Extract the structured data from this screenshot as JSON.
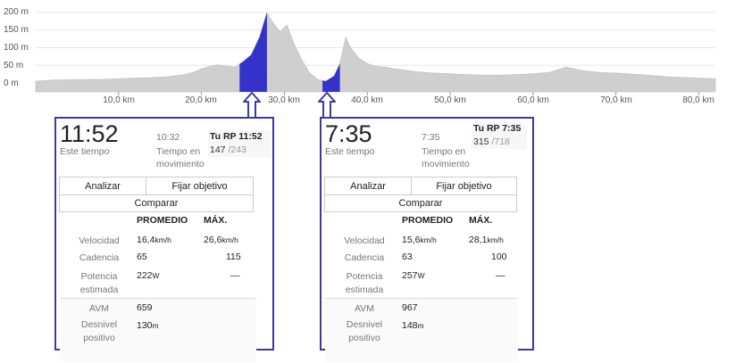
{
  "elevation_chart": {
    "y_ticks": [
      "200 m",
      "150 m",
      "100 m",
      "50 m",
      "0 m"
    ],
    "x_ticks": [
      "10,0 km",
      "20,0 km",
      "30,0 km",
      "40,0 km",
      "50,0 km",
      "60,0 km",
      "70,0 km",
      "80,0 km"
    ],
    "colors": {
      "profile": "#cfcfcf",
      "segment": "#3333cc",
      "grid": "#e6e6e6"
    }
  },
  "chart_data": {
    "type": "area",
    "ylabel": "",
    "xlabel": "",
    "y_unit": "m",
    "x_unit": "km",
    "ylim": [
      0,
      200
    ],
    "xlim": [
      0,
      82
    ],
    "grid": true,
    "x": [
      0,
      2,
      4,
      6,
      8,
      10,
      12,
      14,
      16,
      18,
      19,
      20,
      21,
      22,
      23,
      24,
      25,
      26,
      27,
      27.9,
      28.5,
      29.5,
      30.3,
      31,
      32,
      33,
      34,
      35,
      36,
      36.7,
      37.4,
      38,
      39,
      40,
      41,
      42,
      44,
      46,
      48,
      50,
      52,
      54,
      56,
      58,
      60,
      62,
      64,
      66,
      68,
      70,
      72,
      74,
      76,
      78,
      80,
      82
    ],
    "y": [
      5,
      8,
      9,
      10,
      10,
      12,
      14,
      15,
      18,
      24,
      30,
      40,
      47,
      52,
      48,
      45,
      60,
      80,
      130,
      200,
      175,
      145,
      165,
      120,
      70,
      30,
      10,
      5,
      20,
      55,
      130,
      100,
      70,
      55,
      48,
      45,
      38,
      32,
      28,
      26,
      24,
      22,
      22,
      24,
      26,
      30,
      45,
      35,
      30,
      28,
      25,
      22,
      18,
      16,
      14,
      12
    ],
    "highlighted_segments": [
      {
        "x_start": 24.6,
        "x_end": 27.9
      },
      {
        "x_start": 34.6,
        "x_end": 36.7
      }
    ]
  },
  "cards": [
    {
      "time": "11:52",
      "time_label": "Este tiempo",
      "moving_time": "10:32",
      "moving_label": "Tiempo en movimiento",
      "pr_title": "Tu RP 11:52",
      "rank": "147",
      "rank_total": "/243",
      "buttons": {
        "analyze": "Analizar",
        "set_goal": "Fijar objetivo",
        "compare": "Comparar"
      },
      "headers": {
        "avg": "PROMEDIO",
        "max": "MÁX."
      },
      "rows": {
        "speed": {
          "label": "Velocidad",
          "avg": "16,4",
          "avg_unit": "km/h",
          "max": "26,6",
          "max_unit": "km/h"
        },
        "cadence": {
          "label": "Cadencia",
          "avg": "65",
          "max": "115"
        },
        "power": {
          "label": "Potencia estimada",
          "avg": "222",
          "avg_unit": "W",
          "max": "—"
        },
        "avm": {
          "label": "AVM",
          "value": "659"
        },
        "elevation": {
          "label": "Desnivel positivo",
          "value": "130",
          "unit": "m"
        }
      }
    },
    {
      "time": "7:35",
      "time_label": "Este tiempo",
      "moving_time": "7:35",
      "moving_label": "Tiempo en movimiento",
      "pr_title": "Tu RP 7:35",
      "rank": "315",
      "rank_total": "/718",
      "buttons": {
        "analyze": "Analizar",
        "set_goal": "Fijar objetivo",
        "compare": "Comparar"
      },
      "headers": {
        "avg": "PROMEDIO",
        "max": "MÁX."
      },
      "rows": {
        "speed": {
          "label": "Velocidad",
          "avg": "15,6",
          "avg_unit": "km/h",
          "max": "28,1",
          "max_unit": "km/h"
        },
        "cadence": {
          "label": "Cadencia",
          "avg": "63",
          "max": "100"
        },
        "power": {
          "label": "Potencia estimada",
          "avg": "257",
          "avg_unit": "W",
          "max": "—"
        },
        "avm": {
          "label": "AVM",
          "value": "967"
        },
        "elevation": {
          "label": "Desnivel positivo",
          "value": "148",
          "unit": "m"
        }
      }
    }
  ]
}
